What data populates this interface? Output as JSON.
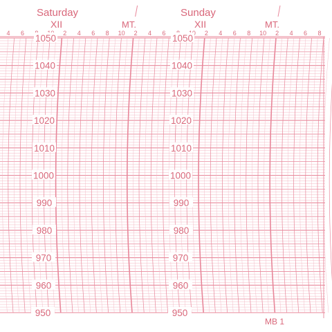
{
  "days": [
    {
      "day": "Saturday",
      "noon": "XII",
      "midnight": "MT."
    },
    {
      "day": "Sunday",
      "noon": "XII",
      "midnight": "MT."
    }
  ],
  "hour_ticks": [
    "4",
    "6",
    "8",
    "10",
    "2",
    "4",
    "6",
    "8",
    "10",
    "2",
    "4",
    "6",
    "8",
    "10",
    "2",
    "4",
    "6",
    "8",
    "10",
    "2",
    "4",
    "6",
    "8"
  ],
  "pressure_labels": [
    "1050",
    "1040",
    "1030",
    "1020",
    "1010",
    "1000",
    "990",
    "980",
    "970",
    "960",
    "950"
  ],
  "chart_code": "MB 1",
  "colors": {
    "line": "#e8879a",
    "minor": "#f3b7c3",
    "text": "#d9677a",
    "paper": "#ffffff"
  }
}
